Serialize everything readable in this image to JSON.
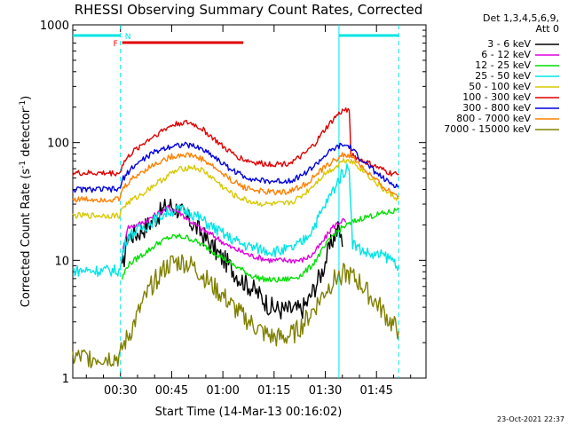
{
  "chart_data": {
    "type": "line",
    "title": "RHESSI Observing Summary Count Rates, Corrected",
    "xlabel": "Start Time (14-Mar-13 00:16:02)",
    "ylabel_main": "Corrected Count Rate (s",
    "ylabel_sup1": "-1",
    "ylabel_mid": " detector",
    "ylabel_sup2": "-1",
    "ylabel_end": ")",
    "x_range_minutes": [
      16.03,
      119.5
    ],
    "ylim": [
      1,
      1000
    ],
    "yscale": "log",
    "xticks": [
      {
        "m": 30,
        "label": "00:30"
      },
      {
        "m": 45,
        "label": "00:45"
      },
      {
        "m": 60,
        "label": "01:00"
      },
      {
        "m": 75,
        "label": "01:15"
      },
      {
        "m": 90,
        "label": "01:30"
      },
      {
        "m": 105,
        "label": "01:45"
      }
    ],
    "yticks": [
      {
        "v": 1,
        "label": "1"
      },
      {
        "v": 10,
        "label": "10"
      },
      {
        "v": 100,
        "label": "100"
      },
      {
        "v": 1000,
        "label": "1000"
      }
    ],
    "legend_header": [
      "Det 1,3,4,5,6,9,",
      "Att 0"
    ],
    "legend_position": "right",
    "footer_date": "23-Oct-2021 22:37",
    "flags": {
      "night_label": "N",
      "flare_label": "F",
      "night_color": "#00e5e5",
      "flare_color": "#e00000",
      "night_bars": [
        [
          16.03,
          30.0
        ],
        [
          94.0,
          111.5
        ]
      ],
      "flare_bar": [
        30.5,
        66.0
      ],
      "night_boundaries": [
        30.0,
        94.0,
        111.5
      ]
    },
    "series": [
      {
        "name": "3 - 6 keV",
        "color": "#000000",
        "values": [
          [
            30.5,
            8
          ],
          [
            32,
            16
          ],
          [
            35,
            17
          ],
          [
            38,
            20
          ],
          [
            41,
            24
          ],
          [
            44,
            30
          ],
          [
            47,
            27
          ],
          [
            50,
            22
          ],
          [
            53,
            18
          ],
          [
            56,
            14
          ],
          [
            59,
            11
          ],
          [
            62,
            9
          ],
          [
            65,
            7
          ],
          [
            68,
            6
          ],
          [
            71,
            5
          ],
          [
            74,
            4
          ],
          [
            77,
            3.8
          ],
          [
            80,
            3.8
          ],
          [
            83,
            3.8
          ],
          [
            85,
            4.5
          ],
          [
            87,
            6
          ],
          [
            89,
            8
          ],
          [
            91,
            12
          ],
          [
            92.5,
            16
          ],
          [
            94,
            19
          ],
          [
            95,
            13
          ]
        ]
      },
      {
        "name": "6 - 12 keV",
        "color": "#e000e0",
        "values": [
          [
            30.5,
            11
          ],
          [
            32,
            19
          ],
          [
            35,
            20
          ],
          [
            38,
            22
          ],
          [
            41,
            25
          ],
          [
            44,
            28
          ],
          [
            47,
            26
          ],
          [
            50,
            22
          ],
          [
            53,
            19
          ],
          [
            56,
            17
          ],
          [
            59,
            15
          ],
          [
            62,
            13
          ],
          [
            65,
            12
          ],
          [
            68,
            11
          ],
          [
            71,
            10.5
          ],
          [
            74,
            10
          ],
          [
            77,
            10
          ],
          [
            80,
            10
          ],
          [
            83,
            10
          ],
          [
            86,
            11
          ],
          [
            89,
            14
          ],
          [
            92,
            19
          ],
          [
            95,
            22
          ],
          [
            96,
            21
          ]
        ]
      },
      {
        "name": "12 - 25 keV",
        "color": "#00e000",
        "values": [
          [
            30.5,
            7
          ],
          [
            32,
            9
          ],
          [
            35,
            10.5
          ],
          [
            38,
            12
          ],
          [
            41,
            14
          ],
          [
            44,
            15.5
          ],
          [
            47,
            16
          ],
          [
            50,
            15.5
          ],
          [
            53,
            14
          ],
          [
            56,
            12.5
          ],
          [
            59,
            11
          ],
          [
            62,
            9.5
          ],
          [
            65,
            8.5
          ],
          [
            68,
            7.5
          ],
          [
            71,
            7
          ],
          [
            74,
            6.8
          ],
          [
            77,
            6.8
          ],
          [
            80,
            7
          ],
          [
            83,
            7.5
          ],
          [
            86,
            9
          ],
          [
            89,
            12
          ],
          [
            92,
            16
          ],
          [
            95,
            19
          ],
          [
            98,
            21
          ],
          [
            101,
            23
          ],
          [
            104,
            24
          ],
          [
            107,
            25
          ],
          [
            110,
            26
          ],
          [
            111.5,
            28
          ]
        ]
      },
      {
        "name": "25 - 50 keV",
        "color": "#00e5e5",
        "values": [
          [
            16.03,
            8.2
          ],
          [
            20,
            8.2
          ],
          [
            25,
            8.2
          ],
          [
            29.9,
            8.2
          ],
          [
            30.5,
            11
          ],
          [
            32,
            16
          ],
          [
            35,
            18
          ],
          [
            38,
            20
          ],
          [
            41,
            23
          ],
          [
            44,
            26
          ],
          [
            47,
            27
          ],
          [
            50,
            26
          ],
          [
            53,
            23
          ],
          [
            56,
            20
          ],
          [
            59,
            17.5
          ],
          [
            62,
            15.5
          ],
          [
            65,
            14
          ],
          [
            68,
            13
          ],
          [
            71,
            12.5
          ],
          [
            74,
            12
          ],
          [
            77,
            12
          ],
          [
            80,
            12.5
          ],
          [
            83,
            14
          ],
          [
            86,
            18
          ],
          [
            89,
            26
          ],
          [
            92,
            38
          ],
          [
            95,
            55
          ],
          [
            97,
            62
          ],
          [
            98,
            14
          ],
          [
            101,
            12
          ],
          [
            104,
            11
          ],
          [
            107,
            11
          ],
          [
            110,
            10
          ],
          [
            111.5,
            9
          ]
        ]
      },
      {
        "name": "50 - 100 keV",
        "color": "#d8c800",
        "values": [
          [
            16.03,
            24
          ],
          [
            20,
            24
          ],
          [
            25,
            24
          ],
          [
            29.9,
            24
          ],
          [
            30.5,
            28
          ],
          [
            33,
            32
          ],
          [
            36,
            36
          ],
          [
            39,
            42
          ],
          [
            42,
            48
          ],
          [
            45,
            55
          ],
          [
            48,
            60
          ],
          [
            51,
            62
          ],
          [
            54,
            58
          ],
          [
            57,
            50
          ],
          [
            60,
            42
          ],
          [
            63,
            36
          ],
          [
            66,
            33
          ],
          [
            69,
            31
          ],
          [
            72,
            30
          ],
          [
            75,
            30
          ],
          [
            78,
            30
          ],
          [
            81,
            32
          ],
          [
            84,
            37
          ],
          [
            87,
            45
          ],
          [
            90,
            55
          ],
          [
            93,
            62
          ],
          [
            95,
            70
          ],
          [
            97,
            72
          ],
          [
            99,
            65
          ],
          [
            102,
            55
          ],
          [
            105,
            45
          ],
          [
            108,
            38
          ],
          [
            111.5,
            33
          ]
        ]
      },
      {
        "name": "100 - 300 keV",
        "color": "#e00000",
        "values": [
          [
            16.03,
            55
          ],
          [
            20,
            55
          ],
          [
            25,
            55
          ],
          [
            29.9,
            55
          ],
          [
            30.5,
            65
          ],
          [
            33,
            80
          ],
          [
            36,
            95
          ],
          [
            39,
            110
          ],
          [
            42,
            125
          ],
          [
            45,
            140
          ],
          [
            48,
            148
          ],
          [
            51,
            145
          ],
          [
            54,
            130
          ],
          [
            57,
            110
          ],
          [
            60,
            92
          ],
          [
            63,
            80
          ],
          [
            66,
            72
          ],
          [
            69,
            68
          ],
          [
            72,
            66
          ],
          [
            75,
            66
          ],
          [
            78,
            66
          ],
          [
            81,
            70
          ],
          [
            84,
            80
          ],
          [
            87,
            98
          ],
          [
            90,
            130
          ],
          [
            93,
            165
          ],
          [
            95,
            185
          ],
          [
            97,
            195
          ],
          [
            97.5,
            80
          ],
          [
            100,
            72
          ],
          [
            103,
            66
          ],
          [
            106,
            60
          ],
          [
            109,
            55
          ],
          [
            111.5,
            53
          ]
        ]
      },
      {
        "name": "300 - 800 keV",
        "color": "#0000e0",
        "values": [
          [
            16.03,
            40
          ],
          [
            20,
            40
          ],
          [
            25,
            40
          ],
          [
            29.9,
            40
          ],
          [
            30.5,
            48
          ],
          [
            33,
            60
          ],
          [
            36,
            70
          ],
          [
            39,
            80
          ],
          [
            42,
            88
          ],
          [
            45,
            94
          ],
          [
            48,
            96
          ],
          [
            51,
            94
          ],
          [
            54,
            88
          ],
          [
            57,
            78
          ],
          [
            60,
            66
          ],
          [
            63,
            58
          ],
          [
            66,
            52
          ],
          [
            69,
            49
          ],
          [
            72,
            47
          ],
          [
            75,
            47
          ],
          [
            78,
            47
          ],
          [
            81,
            49
          ],
          [
            84,
            55
          ],
          [
            87,
            64
          ],
          [
            90,
            78
          ],
          [
            93,
            90
          ],
          [
            95,
            95
          ],
          [
            97,
            93
          ],
          [
            99,
            80
          ],
          [
            102,
            66
          ],
          [
            105,
            55
          ],
          [
            108,
            47
          ],
          [
            111.5,
            42
          ]
        ]
      },
      {
        "name": "800 - 7000 keV",
        "color": "#ff8000",
        "values": [
          [
            16.03,
            33
          ],
          [
            20,
            33
          ],
          [
            25,
            33
          ],
          [
            29.9,
            33
          ],
          [
            30.5,
            40
          ],
          [
            33,
            48
          ],
          [
            36,
            56
          ],
          [
            39,
            63
          ],
          [
            42,
            70
          ],
          [
            45,
            76
          ],
          [
            48,
            79
          ],
          [
            51,
            78
          ],
          [
            54,
            72
          ],
          [
            57,
            63
          ],
          [
            60,
            54
          ],
          [
            63,
            47
          ],
          [
            66,
            42
          ],
          [
            69,
            40
          ],
          [
            72,
            38
          ],
          [
            75,
            38
          ],
          [
            78,
            38
          ],
          [
            81,
            40
          ],
          [
            84,
            44
          ],
          [
            87,
            52
          ],
          [
            90,
            62
          ],
          [
            93,
            72
          ],
          [
            95,
            78
          ],
          [
            97,
            78
          ],
          [
            99,
            70
          ],
          [
            102,
            57
          ],
          [
            105,
            47
          ],
          [
            108,
            40
          ],
          [
            111.5,
            35
          ]
        ]
      },
      {
        "name": "7000 - 15000 keV",
        "color": "#808000",
        "values": [
          [
            16.03,
            1.5
          ],
          [
            20,
            1.5
          ],
          [
            25,
            1.5
          ],
          [
            29.9,
            1.5
          ],
          [
            30.5,
            1.8
          ],
          [
            33,
            2.5
          ],
          [
            36,
            4
          ],
          [
            39,
            6
          ],
          [
            42,
            8
          ],
          [
            45,
            9.5
          ],
          [
            48,
            9.7
          ],
          [
            51,
            9
          ],
          [
            54,
            7.5
          ],
          [
            57,
            6
          ],
          [
            60,
            5
          ],
          [
            63,
            4
          ],
          [
            66,
            3.3
          ],
          [
            69,
            2.8
          ],
          [
            72,
            2.4
          ],
          [
            75,
            2.2
          ],
          [
            78,
            2.2
          ],
          [
            81,
            2.4
          ],
          [
            84,
            3
          ],
          [
            87,
            4
          ],
          [
            90,
            5.5
          ],
          [
            93,
            7
          ],
          [
            95,
            7.7
          ],
          [
            97,
            7.5
          ],
          [
            100,
            6.5
          ],
          [
            103,
            5
          ],
          [
            106,
            4
          ],
          [
            109,
            3
          ],
          [
            111.5,
            2.5
          ]
        ]
      }
    ]
  }
}
